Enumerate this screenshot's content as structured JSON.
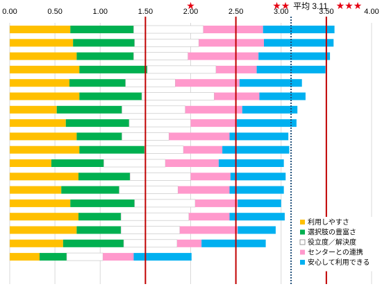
{
  "chart_data": {
    "type": "bar",
    "orientation": "horizontal",
    "stacked": true,
    "xlim": [
      0,
      4.0
    ],
    "x_ticks": [
      "0.00",
      "0.50",
      "1.00",
      "1.50",
      "2.00",
      "2.50",
      "3.00",
      "3.50",
      "4.00"
    ],
    "x_tick_values": [
      0,
      0.5,
      1.0,
      1.5,
      2.0,
      2.5,
      3.0,
      3.5,
      4.0
    ],
    "reference_lines": [
      1.5,
      2.5,
      3.5
    ],
    "average": {
      "value": 3.11,
      "label": "平均 3.11"
    },
    "stars": [
      {
        "value": 2.0,
        "text": "★"
      },
      {
        "value": 3.0,
        "text": "★★"
      },
      {
        "value": 3.75,
        "text": "★★★"
      }
    ],
    "legend_position": "bottom-right",
    "series": [
      {
        "name": "利用しやすさ",
        "color": "#ffc000",
        "values": [
          0.67,
          0.7,
          0.74,
          0.77,
          0.66,
          0.77,
          0.52,
          0.62,
          0.74,
          0.77,
          0.46,
          0.76,
          0.57,
          0.67,
          0.76,
          0.74,
          0.59,
          0.33
        ]
      },
      {
        "name": "選択肢の豊富さ",
        "color": "#00b050",
        "values": [
          0.7,
          0.68,
          0.63,
          0.75,
          0.62,
          0.69,
          0.72,
          0.7,
          0.5,
          0.72,
          0.58,
          0.57,
          0.64,
          0.71,
          0.47,
          0.49,
          0.67,
          0.3
        ]
      },
      {
        "name": "役立度／解決度",
        "color": "#ffffff",
        "values": [
          0.77,
          0.71,
          0.6,
          0.76,
          0.55,
          0.8,
          0.7,
          0.68,
          0.52,
          0.43,
          0.68,
          0.67,
          0.65,
          0.67,
          0.75,
          0.65,
          0.59,
          0.4
        ]
      },
      {
        "name": "センターとの連携",
        "color": "#ff99cc",
        "values": [
          0.66,
          0.72,
          0.78,
          0.45,
          0.71,
          0.5,
          0.63,
          0.51,
          0.67,
          0.43,
          0.59,
          0.44,
          0.57,
          0.47,
          0.45,
          0.64,
          0.27,
          0.34
        ]
      },
      {
        "name": "安心して利用できる",
        "color": "#00b0f0",
        "values": [
          0.79,
          0.77,
          0.79,
          0.76,
          0.69,
          0.51,
          0.61,
          0.66,
          0.65,
          0.74,
          0.72,
          0.61,
          0.6,
          0.48,
          0.61,
          0.42,
          0.71,
          0.64
        ]
      }
    ]
  }
}
